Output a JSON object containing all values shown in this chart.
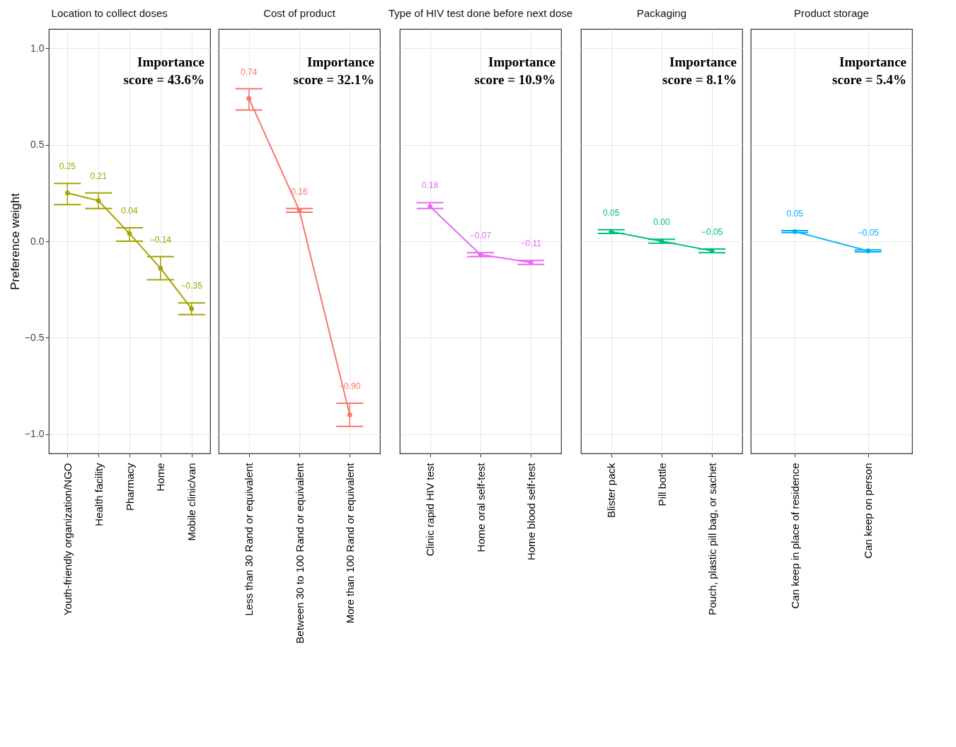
{
  "chart_data": [
    {
      "type": "line",
      "title": "Location to collect doses",
      "ylabel": "Preference weight",
      "categories": [
        "Youth‑friendly organization/NGO",
        "Health facility",
        "Pharmacy",
        "Home",
        "Mobile clinic/van"
      ],
      "values": [
        0.25,
        0.21,
        0.04,
        -0.14,
        -0.35
      ],
      "errors": [
        [
          0.19,
          0.3
        ],
        [
          0.17,
          0.25
        ],
        [
          0.0,
          0.07
        ],
        [
          -0.2,
          -0.08
        ],
        [
          -0.38,
          -0.32
        ]
      ],
      "value_labels": [
        "0.25",
        "0.21",
        "0.04",
        "−0.14",
        "−0.35"
      ],
      "color": "#a3a500",
      "marker": "circle",
      "ylim": [
        -1.1,
        1.1
      ],
      "yticks": [
        {
          "value": -1,
          "label": "−1.0"
        },
        {
          "value": -0.5,
          "label": "−0.5"
        },
        {
          "value": 0,
          "label": "0.0"
        },
        {
          "value": 0.5,
          "label": "0.5"
        },
        {
          "value": 1,
          "label": "1.0"
        }
      ],
      "grid": true,
      "annotations": [
        "Importance score = 43.6%"
      ]
    },
    {
      "type": "line",
      "title": "Cost of product",
      "categories": [
        "Less than 30 Rand or equivalent",
        "Between 30 to 100 Rand or equivalent",
        "More than 100 Rand or equivalent"
      ],
      "values": [
        0.74,
        0.16,
        -0.9
      ],
      "errors": [
        [
          0.68,
          0.79
        ],
        [
          0.15,
          0.17
        ],
        [
          -0.96,
          -0.84
        ]
      ],
      "value_labels": [
        "0.74",
        "0.16",
        "−0.90"
      ],
      "color": "#f8766d",
      "marker": "circle",
      "ylim": [
        -1.1,
        1.1
      ],
      "yticks": [
        -1,
        -0.5,
        0,
        0.5,
        1
      ],
      "grid": true,
      "tick_labels": "x",
      "annotations": [
        "Importance score = 32.1%"
      ]
    },
    {
      "type": "line",
      "title": "Type of HIV test done before next dose",
      "categories": [
        "Clinic rapid HIV test",
        "Home oral self‑test",
        "Home blood self‑test"
      ],
      "values": [
        0.18,
        -0.07,
        -0.11
      ],
      "errors": [
        [
          0.17,
          0.2
        ],
        [
          -0.08,
          -0.06
        ],
        [
          -0.12,
          -0.1
        ]
      ],
      "value_labels": [
        "0.18",
        "−0.07",
        "−0.11"
      ],
      "color": "#e76bf3",
      "marker": "circle",
      "ylim": [
        -1.1,
        1.1
      ],
      "yticks": [
        -1,
        -0.5,
        0,
        0.5,
        1
      ],
      "grid": true,
      "tick_labels": "x",
      "annotations": [
        "Importance score = 10.9%"
      ]
    },
    {
      "type": "line",
      "title": "Packaging",
      "categories": [
        "Blister pack",
        "Pill bottle",
        "Pouch, plastic pill bag, or sachet"
      ],
      "values": [
        0.05,
        0.0,
        -0.05
      ],
      "errors": [
        [
          0.04,
          0.06
        ],
        [
          -0.01,
          0.01
        ],
        [
          -0.06,
          -0.04
        ]
      ],
      "value_labels": [
        "0.05",
        "0.00",
        "−0.05"
      ],
      "color": "#00bf7d",
      "marker": "circle",
      "ylim": [
        -1.1,
        1.1
      ],
      "yticks": [
        -1,
        -0.5,
        0,
        0.5,
        1
      ],
      "grid": true,
      "tick_labels": "x",
      "annotations": [
        "Importance score = 8.1%"
      ]
    },
    {
      "type": "line",
      "title": "Product storage",
      "categories": [
        "Can keep in place of residence",
        "Can keep on person"
      ],
      "values": [
        0.05,
        -0.05
      ],
      "errors": [
        [
          0.045,
          0.055
        ],
        [
          -0.055,
          -0.045
        ]
      ],
      "value_labels": [
        "0.05",
        "−0.05"
      ],
      "color": "#00b0f6",
      "marker": "circle",
      "ylim": [
        -1.1,
        1.1
      ],
      "yticks": [
        -1,
        -0.5,
        0,
        0.5,
        1
      ],
      "grid": true,
      "tick_labels": "x",
      "annotations": [
        "Importance score = 5.4%"
      ]
    }
  ]
}
